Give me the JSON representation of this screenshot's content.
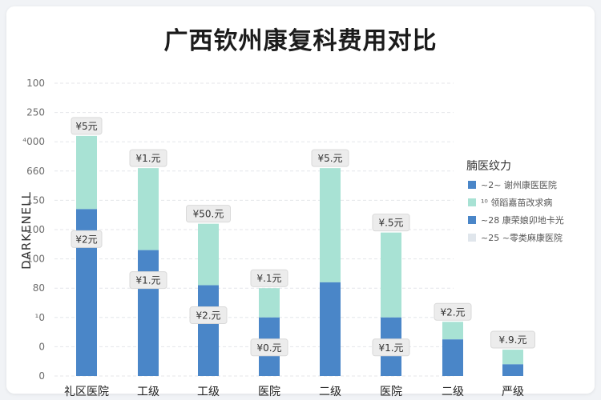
{
  "title": "广西钦州康复科费用对比",
  "chart_data": {
    "type": "bar",
    "stacked": true,
    "ylabel": "DARKENELL",
    "y_ticks": [
      "100",
      "250",
      "⁴000",
      "660",
      "150",
      "100",
      "100",
      "80",
      "¹0",
      "0",
      "0"
    ],
    "ylim": [
      0,
      10
    ],
    "categories": [
      "礼区医院",
      "工级",
      "工级",
      "医院",
      "二级",
      "医院",
      "二级",
      "严级"
    ],
    "series": [
      {
        "color": "#4a86c8",
        "values": [
          5.7,
          4.3,
          3.1,
          2.0,
          3.2,
          2.0,
          1.25,
          0.4
        ]
      },
      {
        "color": "#a8e2d4",
        "values": [
          2.5,
          2.8,
          2.1,
          1.0,
          3.9,
          2.9,
          0.6,
          0.5
        ]
      }
    ],
    "data_labels": [
      {
        "index": 0,
        "top": "¥5元",
        "mid": "¥2元"
      },
      {
        "index": 1,
        "top": "¥1.元",
        "mid": "¥1.元"
      },
      {
        "index": 2,
        "top": "¥50.元",
        "mid": "¥2.元"
      },
      {
        "index": 3,
        "top": "¥.1元",
        "mid": "¥0.元"
      },
      {
        "index": 4,
        "top": "¥5.元",
        "mid": ""
      },
      {
        "index": 5,
        "top": "¥.5元",
        "mid": "¥1.元"
      },
      {
        "index": 6,
        "top": "¥2.元",
        "mid": ""
      },
      {
        "index": 7,
        "top": "¥.9.元",
        "mid": ""
      }
    ],
    "legend": {
      "title": "腩医纹力",
      "placement": "right",
      "items": [
        {
          "color": "#4a86c8",
          "text": "~2~ 谢州康医医院"
        },
        {
          "color": "#a8e2d4",
          "text": "¹⁰ 领蹈嘉苗改求病"
        },
        {
          "color": "#4a86c8",
          "text": "~28 康荣娘卯地卡光"
        },
        {
          "color": "#e0e6ec",
          "text": "~25 ~零类麻康医院"
        }
      ]
    }
  }
}
